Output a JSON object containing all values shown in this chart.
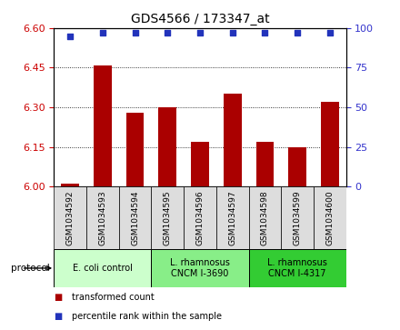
{
  "title": "GDS4566 / 173347_at",
  "samples": [
    "GSM1034592",
    "GSM1034593",
    "GSM1034594",
    "GSM1034595",
    "GSM1034596",
    "GSM1034597",
    "GSM1034598",
    "GSM1034599",
    "GSM1034600"
  ],
  "bar_values": [
    6.01,
    6.46,
    6.28,
    6.3,
    6.17,
    6.35,
    6.17,
    6.15,
    6.32
  ],
  "percentile_values": [
    95,
    97,
    97,
    97,
    97,
    97,
    97,
    97,
    97
  ],
  "ylim_left": [
    6.0,
    6.6
  ],
  "ylim_right": [
    0,
    100
  ],
  "yticks_left": [
    6.0,
    6.15,
    6.3,
    6.45,
    6.6
  ],
  "yticks_right": [
    0,
    25,
    50,
    75,
    100
  ],
  "bar_color": "#AA0000",
  "dot_color": "#2233BB",
  "protocol_groups": [
    {
      "label": "E. coli control",
      "start": 0,
      "end": 3,
      "color": "#ccffcc"
    },
    {
      "label": "L. rhamnosus\nCNCM I-3690",
      "start": 3,
      "end": 6,
      "color": "#88ee88"
    },
    {
      "label": "L. rhamnosus\nCNCM I-4317",
      "start": 6,
      "end": 9,
      "color": "#33cc33"
    }
  ],
  "protocol_label": "protocol",
  "legend_bar_label": "transformed count",
  "legend_dot_label": "percentile rank within the sample",
  "tick_color_left": "#CC0000",
  "tick_color_right": "#3333CC",
  "bg_color": "#ffffff",
  "label_area_color": "#dddddd",
  "plot_area_color": "#ffffff"
}
